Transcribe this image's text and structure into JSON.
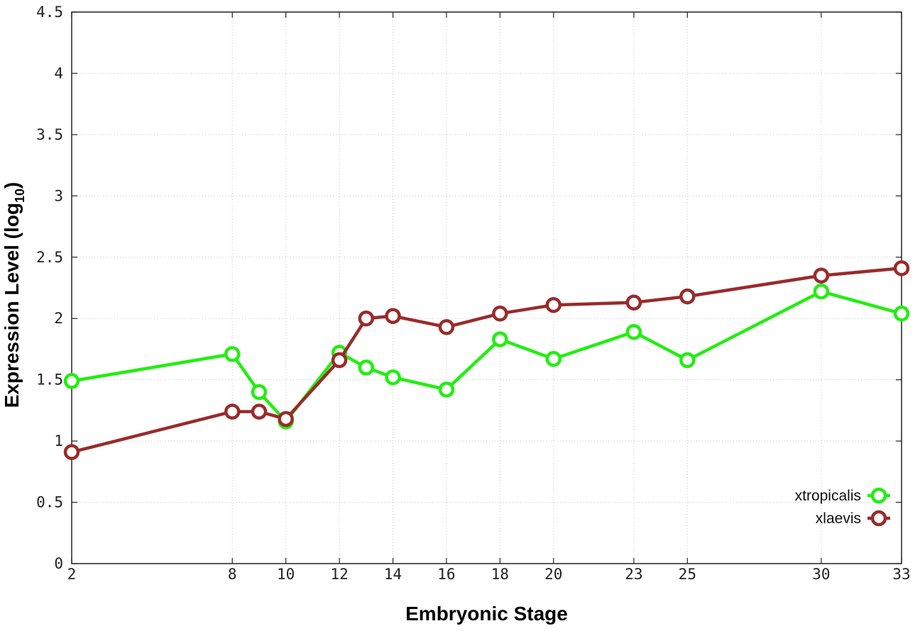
{
  "chart_data": {
    "type": "line",
    "xlabel": "Embryonic Stage",
    "ylabel_main": "Expression Level (log",
    "ylabel_sub": "10",
    "ylabel_close": ")",
    "ylim": [
      0,
      4.5
    ],
    "y_ticks": [
      "0",
      "0.5",
      "1",
      "1.5",
      "2",
      "2.5",
      "3",
      "3.5",
      "4",
      "4.5"
    ],
    "categories": [
      "2",
      "8",
      "9",
      "10",
      "12",
      "13",
      "14",
      "16",
      "18",
      "20",
      "23",
      "25",
      "30",
      "33"
    ],
    "x_tick_labels": [
      "2",
      "8",
      "10",
      "12",
      "14",
      "16",
      "18",
      "20",
      "23",
      "25",
      "30",
      "33"
    ],
    "grid": true,
    "legend_position": "bottom-right",
    "series": [
      {
        "name": "xtropicalis",
        "color": "#22ee11",
        "values": [
          1.49,
          1.71,
          1.4,
          1.16,
          1.72,
          1.6,
          1.52,
          1.42,
          1.83,
          1.67,
          1.89,
          1.66,
          2.22,
          2.04
        ]
      },
      {
        "name": "xlaevis",
        "color": "#992b2b",
        "values": [
          0.91,
          1.24,
          1.24,
          1.18,
          1.66,
          2.0,
          2.02,
          1.93,
          2.04,
          2.11,
          2.13,
          2.18,
          2.35,
          2.41
        ]
      }
    ]
  }
}
